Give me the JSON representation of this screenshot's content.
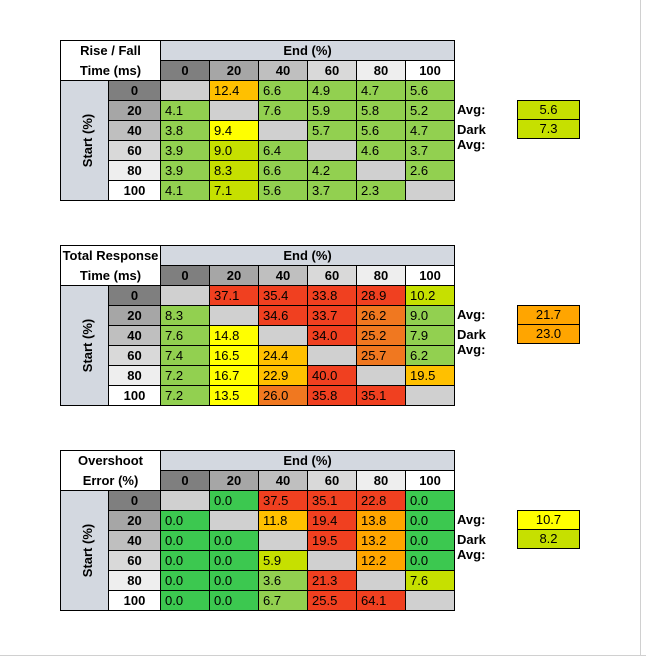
{
  "charts": [
    {
      "title_line1": "Rise / Fall",
      "title_line2": "Time (ms)",
      "end_label": "End (%)",
      "start_label": "Start (%)",
      "levels": [
        "0",
        "20",
        "40",
        "60",
        "80",
        "100"
      ],
      "matrix": [
        [
          null,
          "12.4",
          "6.6",
          "4.9",
          "4.7",
          "5.6"
        ],
        [
          "4.1",
          null,
          "7.6",
          "5.9",
          "5.8",
          "5.2"
        ],
        [
          "3.8",
          "9.4",
          null,
          "5.7",
          "5.6",
          "4.7"
        ],
        [
          "3.9",
          "9.0",
          "6.4",
          null,
          "4.6",
          "3.7"
        ],
        [
          "3.9",
          "8.3",
          "6.6",
          "4.2",
          null,
          "2.6"
        ],
        [
          "4.1",
          "7.1",
          "5.6",
          "3.7",
          "2.3",
          null
        ]
      ],
      "colors": [
        [
          null,
          "#ffc000",
          "#92d050",
          "#92d050",
          "#92d050",
          "#92d050"
        ],
        [
          "#92d050",
          null,
          "#92d050",
          "#92d050",
          "#92d050",
          "#92d050"
        ],
        [
          "#92d050",
          "#ffff00",
          null,
          "#92d050",
          "#92d050",
          "#92d050"
        ],
        [
          "#92d050",
          "#c6e000",
          "#92d050",
          null,
          "#92d050",
          "#92d050"
        ],
        [
          "#92d050",
          "#c6e000",
          "#92d050",
          "#92d050",
          null,
          "#92d050"
        ],
        [
          "#92d050",
          "#c6e000",
          "#92d050",
          "#92d050",
          "#92d050",
          null
        ]
      ],
      "avg_label": "Avg:",
      "avg_value": "5.6",
      "avg_color": "#c6e000",
      "dark_avg_label": "Dark Avg:",
      "dark_avg_value": "7.3",
      "dark_avg_color": "#c6e000"
    },
    {
      "title_line1": "Total Response",
      "title_line2": "Time (ms)",
      "end_label": "End (%)",
      "start_label": "Start (%)",
      "levels": [
        "0",
        "20",
        "40",
        "60",
        "80",
        "100"
      ],
      "matrix": [
        [
          null,
          "37.1",
          "35.4",
          "33.8",
          "28.9",
          "10.2"
        ],
        [
          "8.3",
          null,
          "34.6",
          "33.7",
          "26.2",
          "9.0"
        ],
        [
          "7.6",
          "14.8",
          null,
          "34.0",
          "25.2",
          "7.9"
        ],
        [
          "7.4",
          "16.5",
          "24.4",
          null,
          "25.7",
          "6.2"
        ],
        [
          "7.2",
          "16.7",
          "22.9",
          "40.0",
          null,
          "19.5"
        ],
        [
          "7.2",
          "13.5",
          "26.0",
          "35.8",
          "35.1",
          null
        ]
      ],
      "colors": [
        [
          null,
          "#f04020",
          "#f04020",
          "#f04020",
          "#f04020",
          "#c6e000"
        ],
        [
          "#92d050",
          null,
          "#f04020",
          "#f04020",
          "#f07820",
          "#92d050"
        ],
        [
          "#92d050",
          "#ffff00",
          null,
          "#f04020",
          "#f07820",
          "#92d050"
        ],
        [
          "#92d050",
          "#ffff00",
          "#ffc000",
          null,
          "#f07820",
          "#92d050"
        ],
        [
          "#92d050",
          "#ffff00",
          "#ffc000",
          "#f04020",
          null,
          "#ffc000"
        ],
        [
          "#92d050",
          "#ffff00",
          "#f07820",
          "#f04020",
          "#f04020",
          null
        ]
      ],
      "avg_label": "Avg:",
      "avg_value": "21.7",
      "avg_color": "#ffa500",
      "dark_avg_label": "Dark Avg:",
      "dark_avg_value": "23.0",
      "dark_avg_color": "#ffa500"
    },
    {
      "title_line1": "Overshoot",
      "title_line2": "Error (%)",
      "end_label": "End (%)",
      "start_label": "Start (%)",
      "levels": [
        "0",
        "20",
        "40",
        "60",
        "80",
        "100"
      ],
      "matrix": [
        [
          null,
          "0.0",
          "37.5",
          "35.1",
          "22.8",
          "0.0"
        ],
        [
          "0.0",
          null,
          "11.8",
          "19.4",
          "13.8",
          "0.0"
        ],
        [
          "0.0",
          "0.0",
          null,
          "19.5",
          "13.2",
          "0.0"
        ],
        [
          "0.0",
          "0.0",
          "5.9",
          null,
          "12.2",
          "0.0"
        ],
        [
          "0.0",
          "0.0",
          "3.6",
          "21.3",
          null,
          "7.6"
        ],
        [
          "0.0",
          "0.0",
          "6.7",
          "25.5",
          "64.1",
          null
        ]
      ],
      "colors": [
        [
          null,
          "#3cc850",
          "#f04020",
          "#f04020",
          "#f04020",
          "#3cc850"
        ],
        [
          "#3cc850",
          null,
          "#ffc000",
          "#f04020",
          "#ffa500",
          "#3cc850"
        ],
        [
          "#3cc850",
          "#3cc850",
          null,
          "#f04020",
          "#ffa500",
          "#3cc850"
        ],
        [
          "#3cc850",
          "#3cc850",
          "#c6e000",
          null,
          "#ffa500",
          "#3cc850"
        ],
        [
          "#3cc850",
          "#3cc850",
          "#92d050",
          "#f04020",
          null,
          "#c6e000"
        ],
        [
          "#3cc850",
          "#3cc850",
          "#92d050",
          "#f04020",
          "#f04020",
          null
        ]
      ],
      "avg_label": "Avg:",
      "avg_value": "10.7",
      "avg_color": "#ffff00",
      "dark_avg_label": "Dark Avg:",
      "dark_avg_value": "8.2",
      "dark_avg_color": "#c6e000"
    }
  ],
  "diagonal_color": "#d0d0d0",
  "col_header_colors": [
    "#7f7f7f",
    "#a6a6a6",
    "#bfbfbf",
    "#d9d9d9",
    "#eeeeee",
    "#ffffff"
  ],
  "chart_data": [
    {
      "type": "heatmap",
      "title": "Rise / Fall Time (ms)",
      "xlabel": "End (%)",
      "ylabel": "Start (%)",
      "x": [
        "0",
        "20",
        "40",
        "60",
        "80",
        "100"
      ],
      "y": [
        "0",
        "20",
        "40",
        "60",
        "80",
        "100"
      ],
      "values": [
        [
          null,
          12.4,
          6.6,
          4.9,
          4.7,
          5.6
        ],
        [
          4.1,
          null,
          7.6,
          5.9,
          5.8,
          5.2
        ],
        [
          3.8,
          9.4,
          null,
          5.7,
          5.6,
          4.7
        ],
        [
          3.9,
          9.0,
          6.4,
          null,
          4.6,
          3.7
        ],
        [
          3.9,
          8.3,
          6.6,
          4.2,
          null,
          2.6
        ],
        [
          4.1,
          7.1,
          5.6,
          3.7,
          2.3,
          null
        ]
      ],
      "avg": 5.6,
      "dark_avg": 7.3
    },
    {
      "type": "heatmap",
      "title": "Total Response Time (ms)",
      "xlabel": "End (%)",
      "ylabel": "Start (%)",
      "x": [
        "0",
        "20",
        "40",
        "60",
        "80",
        "100"
      ],
      "y": [
        "0",
        "20",
        "40",
        "60",
        "80",
        "100"
      ],
      "values": [
        [
          null,
          37.1,
          35.4,
          33.8,
          28.9,
          10.2
        ],
        [
          8.3,
          null,
          34.6,
          33.7,
          26.2,
          9.0
        ],
        [
          7.6,
          14.8,
          null,
          34.0,
          25.2,
          7.9
        ],
        [
          7.4,
          16.5,
          24.4,
          null,
          25.7,
          6.2
        ],
        [
          7.2,
          16.7,
          22.9,
          40.0,
          null,
          19.5
        ],
        [
          7.2,
          13.5,
          26.0,
          35.8,
          35.1,
          null
        ]
      ],
      "avg": 21.7,
      "dark_avg": 23.0
    },
    {
      "type": "heatmap",
      "title": "Overshoot Error (%)",
      "xlabel": "End (%)",
      "ylabel": "Start (%)",
      "x": [
        "0",
        "20",
        "40",
        "60",
        "80",
        "100"
      ],
      "y": [
        "0",
        "20",
        "40",
        "60",
        "80",
        "100"
      ],
      "values": [
        [
          null,
          0.0,
          37.5,
          35.1,
          22.8,
          0.0
        ],
        [
          0.0,
          null,
          11.8,
          19.4,
          13.8,
          0.0
        ],
        [
          0.0,
          0.0,
          null,
          19.5,
          13.2,
          0.0
        ],
        [
          0.0,
          0.0,
          5.9,
          null,
          12.2,
          0.0
        ],
        [
          0.0,
          0.0,
          3.6,
          21.3,
          null,
          7.6
        ],
        [
          0.0,
          0.0,
          6.7,
          25.5,
          64.1,
          null
        ]
      ],
      "avg": 10.7,
      "dark_avg": 8.2
    }
  ]
}
